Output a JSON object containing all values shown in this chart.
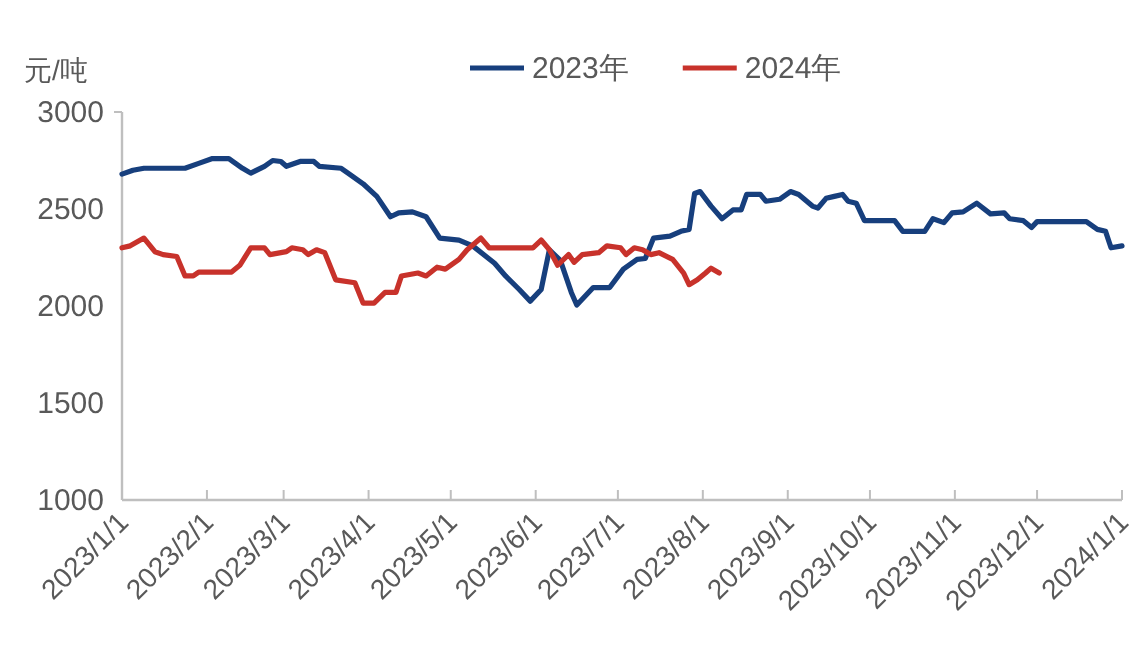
{
  "chart_data": {
    "type": "line",
    "ylabel": "元/吨",
    "legend": "top",
    "grid": false,
    "line_style": "solid",
    "marker": "none",
    "xlim": [
      "2023-01-01",
      "2024-01-01"
    ],
    "xticks": [
      {
        "value": "2023-01-01",
        "label": "2023/1/1"
      },
      {
        "value": "2023-02-01",
        "label": "2023/2/1"
      },
      {
        "value": "2023-03-01",
        "label": "2023/3/1"
      },
      {
        "value": "2023-04-01",
        "label": "2023/4/1"
      },
      {
        "value": "2023-05-01",
        "label": "2023/5/1"
      },
      {
        "value": "2023-06-01",
        "label": "2023/6/1"
      },
      {
        "value": "2023-07-01",
        "label": "2023/7/1"
      },
      {
        "value": "2023-08-01",
        "label": "2023/8/1"
      },
      {
        "value": "2023-09-01",
        "label": "2023/9/1"
      },
      {
        "value": "2023-10-01",
        "label": "2023/10/1"
      },
      {
        "value": "2023-11-01",
        "label": "2023/11/1"
      },
      {
        "value": "2023-12-01",
        "label": "2023/12/1"
      },
      {
        "value": "2024-01-01",
        "label": "2024/1/1"
      }
    ],
    "ylim": [
      1000,
      3000
    ],
    "yticks": [
      1000,
      1500,
      2000,
      2500,
      3000
    ],
    "series": [
      {
        "name": "2023年",
        "color": "#173f7d",
        "x": [
          "2023-01-01",
          "2023-01-05",
          "2023-01-09",
          "2023-01-24",
          "2023-01-29",
          "2023-02-03",
          "2023-02-09",
          "2023-02-14",
          "2023-02-17",
          "2023-02-22",
          "2023-02-25",
          "2023-02-28",
          "2023-03-02",
          "2023-03-07",
          "2023-03-12",
          "2023-03-14",
          "2023-03-22",
          "2023-03-25",
          "2023-03-30",
          "2023-04-04",
          "2023-04-09",
          "2023-04-12",
          "2023-04-17",
          "2023-04-22",
          "2023-04-27",
          "2023-05-04",
          "2023-05-09",
          "2023-05-17",
          "2023-05-21",
          "2023-05-26",
          "2023-05-30",
          "2023-06-03",
          "2023-06-06",
          "2023-06-10",
          "2023-06-14",
          "2023-06-16",
          "2023-06-22",
          "2023-06-28",
          "2023-07-03",
          "2023-07-08",
          "2023-07-11",
          "2023-07-14",
          "2023-07-20",
          "2023-07-24",
          "2023-07-27",
          "2023-07-29",
          "2023-07-31",
          "2023-08-04",
          "2023-08-08",
          "2023-08-12",
          "2023-08-15",
          "2023-08-17",
          "2023-08-22",
          "2023-08-24",
          "2023-08-29",
          "2023-09-02",
          "2023-09-05",
          "2023-09-10",
          "2023-09-12",
          "2023-09-15",
          "2023-09-18",
          "2023-09-21",
          "2023-09-23",
          "2023-09-26",
          "2023-09-29",
          "2023-10-10",
          "2023-10-13",
          "2023-10-21",
          "2023-10-24",
          "2023-10-28",
          "2023-10-31",
          "2023-11-04",
          "2023-11-09",
          "2023-11-14",
          "2023-11-19",
          "2023-11-21",
          "2023-11-26",
          "2023-11-29",
          "2023-12-01",
          "2023-12-19",
          "2023-12-23",
          "2023-12-26",
          "2023-12-28",
          "2024-01-01"
        ],
        "values": [
          2680,
          2700,
          2710,
          2710,
          2735,
          2760,
          2760,
          2710,
          2685,
          2720,
          2750,
          2745,
          2720,
          2745,
          2745,
          2720,
          2710,
          2680,
          2630,
          2565,
          2460,
          2480,
          2485,
          2460,
          2350,
          2340,
          2310,
          2220,
          2155,
          2085,
          2025,
          2085,
          2290,
          2235,
          2070,
          2005,
          2095,
          2095,
          2190,
          2240,
          2245,
          2350,
          2360,
          2385,
          2395,
          2580,
          2590,
          2515,
          2450,
          2495,
          2495,
          2575,
          2575,
          2540,
          2550,
          2590,
          2575,
          2515,
          2505,
          2555,
          2565,
          2575,
          2540,
          2530,
          2440,
          2440,
          2385,
          2385,
          2450,
          2430,
          2480,
          2485,
          2530,
          2475,
          2480,
          2450,
          2440,
          2405,
          2435,
          2435,
          2395,
          2385,
          2300,
          2310
        ]
      },
      {
        "name": "2024年",
        "color": "#c8322b",
        "x": [
          "2023-01-01",
          "2023-01-04",
          "2023-01-09",
          "2023-01-13",
          "2023-01-16",
          "2023-01-21",
          "2023-01-24",
          "2023-01-27",
          "2023-01-29",
          "2023-02-10",
          "2023-02-13",
          "2023-02-17",
          "2023-02-22",
          "2023-02-24",
          "2023-03-02",
          "2023-03-04",
          "2023-03-08",
          "2023-03-10",
          "2023-03-13",
          "2023-03-16",
          "2023-03-20",
          "2023-03-27",
          "2023-03-30",
          "2023-04-03",
          "2023-04-07",
          "2023-04-11",
          "2023-04-13",
          "2023-04-19",
          "2023-04-22",
          "2023-04-26",
          "2023-04-29",
          "2023-05-04",
          "2023-05-07",
          "2023-05-12",
          "2023-05-15",
          "2023-05-31",
          "2023-06-03",
          "2023-06-06",
          "2023-06-09",
          "2023-06-13",
          "2023-06-15",
          "2023-06-18",
          "2023-06-24",
          "2023-06-27",
          "2023-07-02",
          "2023-07-04",
          "2023-07-07",
          "2023-07-10",
          "2023-07-13",
          "2023-07-16",
          "2023-07-21",
          "2023-07-25",
          "2023-07-27",
          "2023-07-30",
          "2023-08-02",
          "2023-08-04",
          "2023-08-07"
        ],
        "values": [
          2300,
          2310,
          2350,
          2280,
          2265,
          2255,
          2155,
          2155,
          2175,
          2175,
          2210,
          2300,
          2300,
          2265,
          2280,
          2300,
          2290,
          2265,
          2290,
          2275,
          2135,
          2120,
          2015,
          2015,
          2070,
          2070,
          2155,
          2170,
          2155,
          2200,
          2190,
          2240,
          2290,
          2350,
          2300,
          2300,
          2340,
          2290,
          2210,
          2265,
          2225,
          2265,
          2275,
          2310,
          2300,
          2265,
          2300,
          2290,
          2265,
          2275,
          2240,
          2170,
          2110,
          2135,
          2170,
          2195,
          2170
        ]
      }
    ]
  }
}
